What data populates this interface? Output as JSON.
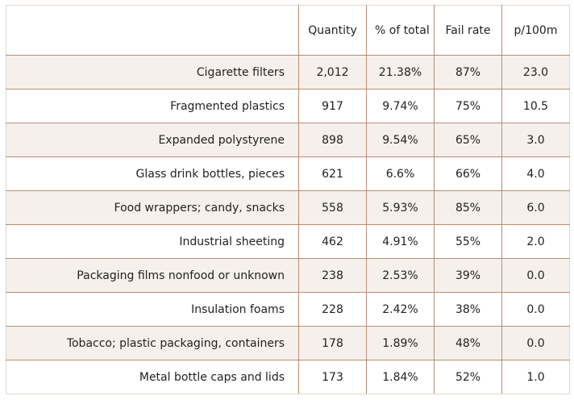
{
  "table": {
    "headers": [
      "",
      "Quantity",
      "% of total",
      "Fail rate",
      "p/100m"
    ],
    "rows": [
      {
        "item": "Cigarette filters",
        "quantity": "2,012",
        "percent": "21.38%",
        "fail_rate": "87%",
        "per_100m": "23.0"
      },
      {
        "item": "Fragmented plastics",
        "quantity": "917",
        "percent": "9.74%",
        "fail_rate": "75%",
        "per_100m": "10.5"
      },
      {
        "item": "Expanded polystyrene",
        "quantity": "898",
        "percent": "9.54%",
        "fail_rate": "65%",
        "per_100m": "3.0"
      },
      {
        "item": "Glass drink bottles, pieces",
        "quantity": "621",
        "percent": "6.6%",
        "fail_rate": "66%",
        "per_100m": "4.0"
      },
      {
        "item": "Food wrappers; candy, snacks",
        "quantity": "558",
        "percent": "5.93%",
        "fail_rate": "85%",
        "per_100m": "6.0"
      },
      {
        "item": "Industrial sheeting",
        "quantity": "462",
        "percent": "4.91%",
        "fail_rate": "55%",
        "per_100m": "2.0"
      },
      {
        "item": "Packaging films nonfood or unknown",
        "quantity": "238",
        "percent": "2.53%",
        "fail_rate": "39%",
        "per_100m": "0.0"
      },
      {
        "item": "Insulation foams",
        "quantity": "228",
        "percent": "2.42%",
        "fail_rate": "38%",
        "per_100m": "0.0"
      },
      {
        "item": "Tobacco; plastic packaging, containers",
        "quantity": "178",
        "percent": "1.89%",
        "fail_rate": "48%",
        "per_100m": "0.0"
      },
      {
        "item": "Metal bottle caps and lids",
        "quantity": "173",
        "percent": "1.84%",
        "fail_rate": "52%",
        "per_100m": "1.0"
      }
    ]
  },
  "colors": {
    "border": "#b98d73",
    "stripe": "#f5f0ec",
    "text": "#222222"
  }
}
